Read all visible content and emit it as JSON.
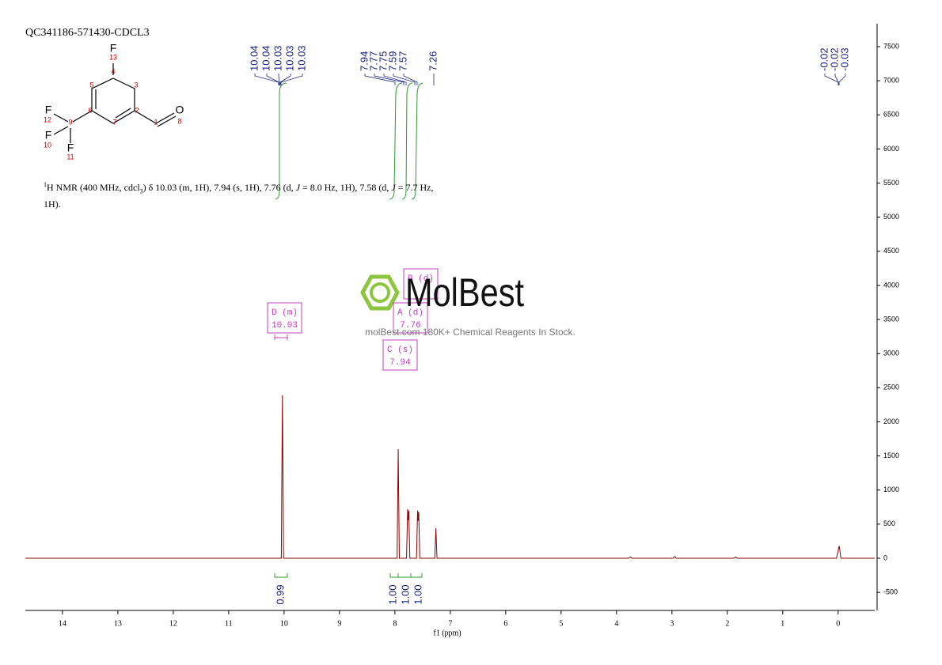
{
  "chart_data": {
    "type": "line",
    "title": "QC341186-571430-CDCL3",
    "xlabel": "f1 (ppm)",
    "xlim": [
      14.67,
      -0.66
    ],
    "ylim": [
      -765,
      7836
    ],
    "xticks": [
      14,
      13,
      12,
      11,
      10,
      9,
      8,
      7,
      6,
      5,
      4,
      3,
      2,
      1,
      0
    ],
    "yticks": [
      -500,
      0,
      500,
      1000,
      1500,
      2000,
      2500,
      3000,
      3500,
      4000,
      4500,
      5000,
      5500,
      6000,
      6500,
      7000,
      7500
    ],
    "series": [
      {
        "color": "#8b0000",
        "x": [
          14.67,
          10.05,
          10.03,
          10.01,
          7.96,
          7.94,
          7.92,
          7.79,
          7.77,
          7.76,
          7.75,
          7.73,
          7.61,
          7.59,
          7.58,
          7.57,
          7.55,
          7.28,
          7.26,
          7.24,
          3.78,
          3.75,
          3.72,
          2.98,
          2.95,
          2.92,
          1.88,
          1.85,
          1.82,
          0.03,
          -0.02,
          -0.05,
          -0.66
        ],
        "values": [
          0,
          0,
          2390,
          0,
          0,
          1600,
          0,
          0,
          720,
          560,
          700,
          0,
          0,
          700,
          550,
          680,
          0,
          0,
          440,
          0,
          0,
          20,
          0,
          0,
          25,
          0,
          0,
          20,
          0,
          0,
          180,
          0,
          0
        ]
      }
    ],
    "peak_labels": [
      "10.04",
      "10.04",
      "10.03",
      "10.03",
      "10.03",
      "7.94",
      "7.77",
      "7.75",
      "7.59",
      "7.57",
      "7.26",
      "-0.02",
      "-0.02",
      "-0.03"
    ],
    "integrals": [
      "0.99",
      "1.00",
      "1.00",
      "1.00"
    ],
    "multiplets": [
      {
        "label": "D (m)",
        "shift": "10.03"
      },
      {
        "label": "B (d)"
      },
      {
        "label": "A (d)",
        "shift": "7.76"
      },
      {
        "label": "C (s)",
        "shift": "7.94"
      }
    ],
    "description": [
      "1",
      "H NMR (400 MHz, cdcl",
      "3",
      ") δ 10.03 (m, 1H), 7.94 (s, 1H), 7.76 (d, ",
      "J",
      " = 8.0 Hz, 1H), 7.58 (d, ",
      "J",
      " = 7.7 Hz,",
      "1H)."
    ],
    "structure": [
      "F",
      "13",
      "4",
      "5",
      "3",
      "6",
      "2",
      "7",
      "1",
      "O",
      "8",
      "F",
      "12",
      "9",
      "F",
      "10",
      "F",
      "11"
    ],
    "watermark": {
      "brand": "MolBest",
      "tagline": "molBest.com 180K+ Chemical Reagents In Stock."
    }
  }
}
